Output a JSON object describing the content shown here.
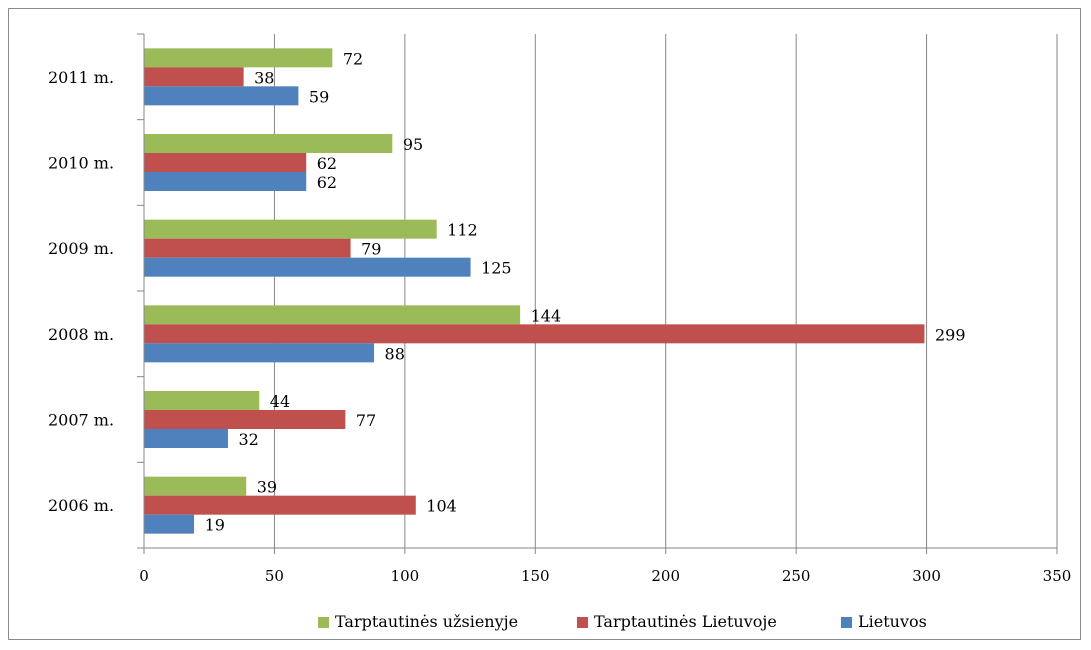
{
  "chart_data": {
    "type": "bar",
    "orientation": "horizontal",
    "categories": [
      "2011 m.",
      "2010 m.",
      "2009 m.",
      "2008 m.",
      "2007 m.",
      "2006 m."
    ],
    "series": [
      {
        "name": "Tarptautinės užsienyje",
        "color": "#9bbb59",
        "values": [
          72,
          95,
          112,
          144,
          44,
          39
        ]
      },
      {
        "name": "Tarptautinės Lietuvoje",
        "color": "#c0504d",
        "values": [
          38,
          62,
          79,
          299,
          77,
          104
        ]
      },
      {
        "name": "Lietuvos",
        "color": "#4f81bd",
        "values": [
          59,
          62,
          125,
          88,
          32,
          19
        ]
      }
    ],
    "xlim": [
      0,
      350
    ],
    "xticks": [
      "0",
      "50",
      "100",
      "150",
      "200",
      "250",
      "300",
      "350"
    ],
    "title": "",
    "xlabel": "",
    "ylabel": "",
    "grid": "vertical",
    "data_labels": true,
    "legend_position": "bottom"
  }
}
